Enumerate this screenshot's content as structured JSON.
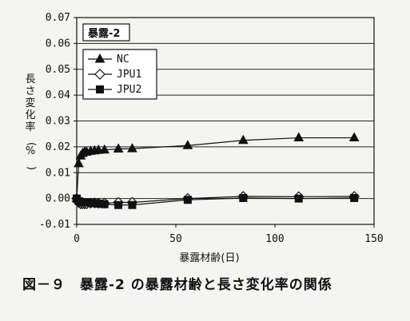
{
  "caption": "図－９　暴露-2 の暴露材齢と長さ変化率の関係",
  "chart_data": {
    "type": "line",
    "panel_label": "暴露-2",
    "xlabel": "暴露材齢(日)",
    "ylabel": "長さ変化率(%)",
    "xlim": [
      0,
      150
    ],
    "ylim": [
      -0.01,
      0.07
    ],
    "x_ticks": [
      "0",
      "50",
      "100",
      "150"
    ],
    "x_tick_values": [
      0,
      50,
      100,
      150
    ],
    "y_ticks": [
      "-0.01",
      "0.00",
      "0.01",
      "0.02",
      "0.03",
      "0.04",
      "0.05",
      "0.06",
      "0.07"
    ],
    "y_tick_values": [
      -0.01,
      0,
      0.01,
      0.02,
      0.03,
      0.04,
      0.05,
      0.06,
      0.07
    ],
    "grid": "horizontal",
    "legend_position": "top-left",
    "series": [
      {
        "name": "NC",
        "marker": "triangle",
        "x": [
          0,
          1,
          2,
          3,
          4,
          5,
          7,
          9,
          11,
          14,
          21,
          28,
          56,
          84,
          112,
          140
        ],
        "y": [
          0.0,
          0.0135,
          0.0165,
          0.0175,
          0.018,
          0.018,
          0.0183,
          0.0185,
          0.0187,
          0.0188,
          0.0192,
          0.0193,
          0.0205,
          0.0225,
          0.0235,
          0.0235
        ]
      },
      {
        "name": "JPU1",
        "marker": "diamond",
        "x": [
          0,
          1,
          2,
          3,
          4,
          5,
          7,
          9,
          11,
          14,
          21,
          28,
          56,
          84,
          112,
          140
        ],
        "y": [
          0.0,
          -0.0015,
          -0.002,
          -0.002,
          -0.002,
          -0.002,
          -0.0018,
          -0.0017,
          -0.0018,
          -0.0018,
          -0.0015,
          -0.0015,
          0.0,
          0.0008,
          0.0007,
          0.0008
        ]
      },
      {
        "name": "JPU2",
        "marker": "square",
        "x": [
          0,
          1,
          2,
          3,
          4,
          5,
          7,
          9,
          11,
          14,
          21,
          28,
          56,
          84,
          112,
          140
        ],
        "y": [
          0.0,
          -0.001,
          -0.0013,
          -0.0015,
          -0.0015,
          -0.0015,
          -0.0017,
          -0.0018,
          -0.002,
          -0.0022,
          -0.0025,
          -0.0025,
          -0.0005,
          0.0002,
          0.0,
          0.0002
        ]
      }
    ]
  }
}
